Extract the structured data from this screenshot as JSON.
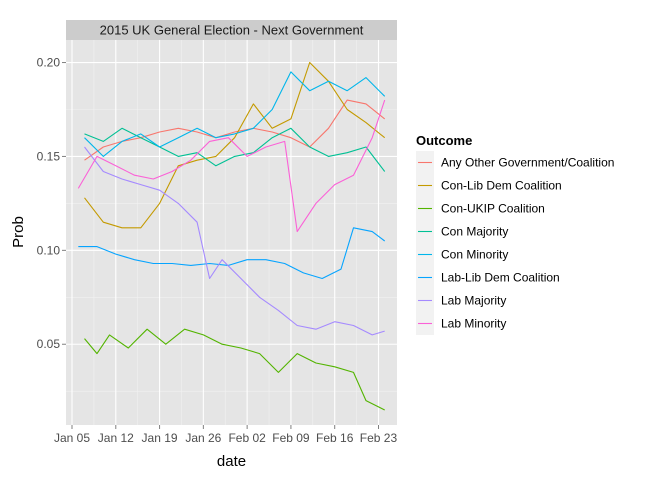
{
  "chart_data": {
    "type": "line",
    "title": "2015 UK General Election - Next Government",
    "xlabel": "date",
    "ylabel": "Prob",
    "x_ticks": [
      "Jan 05",
      "Jan 12",
      "Jan 19",
      "Jan 26",
      "Feb 02",
      "Feb 09",
      "Feb 16",
      "Feb 23"
    ],
    "y_ticks": [
      "0.05",
      "0.10",
      "0.15",
      "0.20"
    ],
    "xlim": [
      "2015-01-05",
      "2015-02-25"
    ],
    "ylim": [
      0.007,
      0.212
    ],
    "grid": true,
    "legend": {
      "title": "Outcome",
      "placement": "right"
    },
    "series": [
      {
        "name": "Any Other Government/Coalition",
        "color": "#F8766D",
        "points": [
          [
            "2015-01-07",
            0.148
          ],
          [
            "2015-01-10",
            0.155
          ],
          [
            "2015-01-13",
            0.158
          ],
          [
            "2015-01-16",
            0.16
          ],
          [
            "2015-01-19",
            0.163
          ],
          [
            "2015-01-22",
            0.165
          ],
          [
            "2015-01-25",
            0.163
          ],
          [
            "2015-01-28",
            0.16
          ],
          [
            "2015-01-31",
            0.163
          ],
          [
            "2015-02-03",
            0.165
          ],
          [
            "2015-02-06",
            0.163
          ],
          [
            "2015-02-09",
            0.16
          ],
          [
            "2015-02-12",
            0.155
          ],
          [
            "2015-02-15",
            0.165
          ],
          [
            "2015-02-18",
            0.18
          ],
          [
            "2015-02-21",
            0.178
          ],
          [
            "2015-02-24",
            0.17
          ]
        ]
      },
      {
        "name": "Con-Lib Dem Coalition",
        "color": "#C49A00",
        "points": [
          [
            "2015-01-07",
            0.128
          ],
          [
            "2015-01-10",
            0.115
          ],
          [
            "2015-01-13",
            0.112
          ],
          [
            "2015-01-16",
            0.112
          ],
          [
            "2015-01-19",
            0.125
          ],
          [
            "2015-01-22",
            0.145
          ],
          [
            "2015-01-25",
            0.148
          ],
          [
            "2015-01-28",
            0.15
          ],
          [
            "2015-01-31",
            0.16
          ],
          [
            "2015-02-03",
            0.178
          ],
          [
            "2015-02-06",
            0.165
          ],
          [
            "2015-02-09",
            0.17
          ],
          [
            "2015-02-12",
            0.2
          ],
          [
            "2015-02-15",
            0.19
          ],
          [
            "2015-02-18",
            0.175
          ],
          [
            "2015-02-21",
            0.168
          ],
          [
            "2015-02-24",
            0.16
          ]
        ]
      },
      {
        "name": "Con-UKIP Coalition",
        "color": "#53B400",
        "points": [
          [
            "2015-01-07",
            0.053
          ],
          [
            "2015-01-09",
            0.045
          ],
          [
            "2015-01-11",
            0.055
          ],
          [
            "2015-01-14",
            0.048
          ],
          [
            "2015-01-17",
            0.058
          ],
          [
            "2015-01-20",
            0.05
          ],
          [
            "2015-01-23",
            0.058
          ],
          [
            "2015-01-26",
            0.055
          ],
          [
            "2015-01-29",
            0.05
          ],
          [
            "2015-02-01",
            0.048
          ],
          [
            "2015-02-04",
            0.045
          ],
          [
            "2015-02-07",
            0.035
          ],
          [
            "2015-02-10",
            0.045
          ],
          [
            "2015-02-13",
            0.04
          ],
          [
            "2015-02-16",
            0.038
          ],
          [
            "2015-02-19",
            0.035
          ],
          [
            "2015-02-21",
            0.02
          ],
          [
            "2015-02-24",
            0.015
          ]
        ]
      },
      {
        "name": "Con Majority",
        "color": "#00C094",
        "points": [
          [
            "2015-01-07",
            0.162
          ],
          [
            "2015-01-10",
            0.158
          ],
          [
            "2015-01-13",
            0.165
          ],
          [
            "2015-01-16",
            0.16
          ],
          [
            "2015-01-19",
            0.155
          ],
          [
            "2015-01-22",
            0.15
          ],
          [
            "2015-01-25",
            0.152
          ],
          [
            "2015-01-28",
            0.145
          ],
          [
            "2015-01-31",
            0.15
          ],
          [
            "2015-02-03",
            0.152
          ],
          [
            "2015-02-06",
            0.16
          ],
          [
            "2015-02-09",
            0.165
          ],
          [
            "2015-02-12",
            0.155
          ],
          [
            "2015-02-15",
            0.15
          ],
          [
            "2015-02-18",
            0.152
          ],
          [
            "2015-02-21",
            0.155
          ],
          [
            "2015-02-24",
            0.142
          ]
        ]
      },
      {
        "name": "Con Minority",
        "color": "#00B6EB",
        "points": [
          [
            "2015-01-07",
            0.16
          ],
          [
            "2015-01-10",
            0.15
          ],
          [
            "2015-01-13",
            0.158
          ],
          [
            "2015-01-16",
            0.162
          ],
          [
            "2015-01-19",
            0.155
          ],
          [
            "2015-01-22",
            0.16
          ],
          [
            "2015-01-25",
            0.165
          ],
          [
            "2015-01-28",
            0.16
          ],
          [
            "2015-01-31",
            0.162
          ],
          [
            "2015-02-03",
            0.165
          ],
          [
            "2015-02-06",
            0.175
          ],
          [
            "2015-02-09",
            0.195
          ],
          [
            "2015-02-12",
            0.185
          ],
          [
            "2015-02-15",
            0.19
          ],
          [
            "2015-02-18",
            0.185
          ],
          [
            "2015-02-21",
            0.192
          ],
          [
            "2015-02-24",
            0.182
          ]
        ]
      },
      {
        "name": "Lab-Lib Dem Coalition",
        "color": "#06A4FF",
        "points": [
          [
            "2015-01-06",
            0.102
          ],
          [
            "2015-01-09",
            0.102
          ],
          [
            "2015-01-12",
            0.098
          ],
          [
            "2015-01-15",
            0.095
          ],
          [
            "2015-01-18",
            0.093
          ],
          [
            "2015-01-21",
            0.093
          ],
          [
            "2015-01-24",
            0.092
          ],
          [
            "2015-01-27",
            0.093
          ],
          [
            "2015-01-30",
            0.092
          ],
          [
            "2015-02-02",
            0.095
          ],
          [
            "2015-02-05",
            0.095
          ],
          [
            "2015-02-08",
            0.093
          ],
          [
            "2015-02-11",
            0.088
          ],
          [
            "2015-02-14",
            0.085
          ],
          [
            "2015-02-17",
            0.09
          ],
          [
            "2015-02-19",
            0.112
          ],
          [
            "2015-02-22",
            0.11
          ],
          [
            "2015-02-24",
            0.105
          ]
        ]
      },
      {
        "name": "Lab Majority",
        "color": "#A58AFF",
        "points": [
          [
            "2015-01-07",
            0.155
          ],
          [
            "2015-01-10",
            0.142
          ],
          [
            "2015-01-13",
            0.138
          ],
          [
            "2015-01-16",
            0.135
          ],
          [
            "2015-01-19",
            0.132
          ],
          [
            "2015-01-22",
            0.125
          ],
          [
            "2015-01-25",
            0.115
          ],
          [
            "2015-01-27",
            0.085
          ],
          [
            "2015-01-29",
            0.095
          ],
          [
            "2015-02-01",
            0.085
          ],
          [
            "2015-02-04",
            0.075
          ],
          [
            "2015-02-07",
            0.068
          ],
          [
            "2015-02-10",
            0.06
          ],
          [
            "2015-02-13",
            0.058
          ],
          [
            "2015-02-16",
            0.062
          ],
          [
            "2015-02-19",
            0.06
          ],
          [
            "2015-02-22",
            0.055
          ],
          [
            "2015-02-24",
            0.057
          ]
        ]
      },
      {
        "name": "Lab Minority",
        "color": "#FB61D7",
        "points": [
          [
            "2015-01-06",
            0.133
          ],
          [
            "2015-01-09",
            0.15
          ],
          [
            "2015-01-12",
            0.145
          ],
          [
            "2015-01-15",
            0.14
          ],
          [
            "2015-01-18",
            0.138
          ],
          [
            "2015-01-21",
            0.142
          ],
          [
            "2015-01-24",
            0.148
          ],
          [
            "2015-01-27",
            0.158
          ],
          [
            "2015-01-30",
            0.16
          ],
          [
            "2015-02-02",
            0.15
          ],
          [
            "2015-02-05",
            0.155
          ],
          [
            "2015-02-08",
            0.158
          ],
          [
            "2015-02-10",
            0.11
          ],
          [
            "2015-02-13",
            0.125
          ],
          [
            "2015-02-16",
            0.135
          ],
          [
            "2015-02-19",
            0.14
          ],
          [
            "2015-02-22",
            0.16
          ],
          [
            "2015-02-24",
            0.18
          ]
        ]
      }
    ]
  }
}
